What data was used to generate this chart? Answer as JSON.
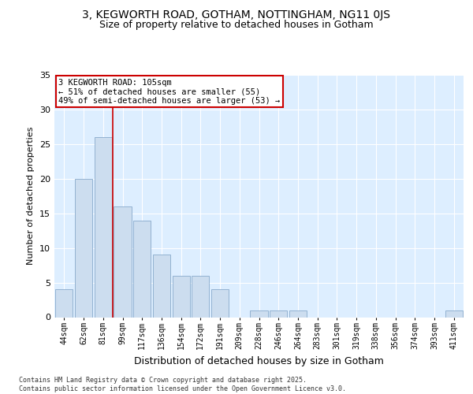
{
  "title1": "3, KEGWORTH ROAD, GOTHAM, NOTTINGHAM, NG11 0JS",
  "title2": "Size of property relative to detached houses in Gotham",
  "xlabel": "Distribution of detached houses by size in Gotham",
  "ylabel": "Number of detached properties",
  "categories": [
    "44sqm",
    "62sqm",
    "81sqm",
    "99sqm",
    "117sqm",
    "136sqm",
    "154sqm",
    "172sqm",
    "191sqm",
    "209sqm",
    "228sqm",
    "246sqm",
    "264sqm",
    "283sqm",
    "301sqm",
    "319sqm",
    "338sqm",
    "356sqm",
    "374sqm",
    "393sqm",
    "411sqm"
  ],
  "values": [
    4,
    20,
    26,
    16,
    14,
    9,
    6,
    6,
    4,
    0,
    1,
    1,
    1,
    0,
    0,
    0,
    0,
    0,
    0,
    0,
    1
  ],
  "bar_color": "#ccddef",
  "bar_edge_color": "#88aacc",
  "vline_x": 2.5,
  "vline_color": "#cc0000",
  "annotation_text": "3 KEGWORTH ROAD: 105sqm\n← 51% of detached houses are smaller (55)\n49% of semi-detached houses are larger (53) →",
  "annotation_box_color": "#ffffff",
  "annotation_box_edge": "#cc0000",
  "plot_bg_color": "#ddeeff",
  "fig_bg_color": "#ffffff",
  "ylim": [
    0,
    35
  ],
  "yticks": [
    0,
    5,
    10,
    15,
    20,
    25,
    30,
    35
  ],
  "footer": "Contains HM Land Registry data © Crown copyright and database right 2025.\nContains public sector information licensed under the Open Government Licence v3.0.",
  "grid_color": "#ffffff",
  "title1_fontsize": 10,
  "title2_fontsize": 9,
  "xlabel_fontsize": 9,
  "ylabel_fontsize": 8,
  "tick_fontsize": 7,
  "footer_fontsize": 6,
  "annot_fontsize": 7.5
}
